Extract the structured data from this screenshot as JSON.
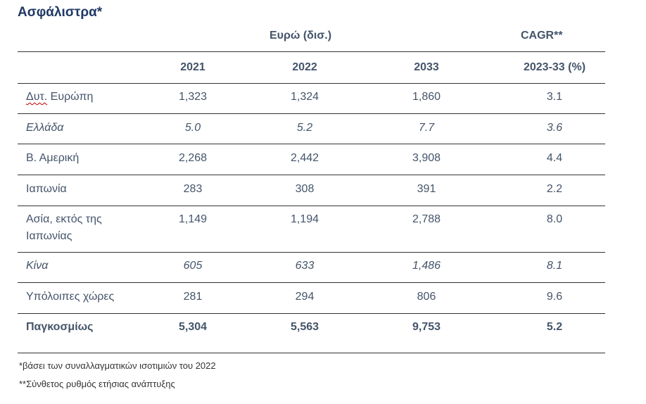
{
  "title": "Ασφάλιστρα*",
  "group_headers": {
    "currency": "Ευρώ (δισ.)",
    "cagr": "CAGR**"
  },
  "columns": [
    "",
    "2021",
    "2022",
    "2033",
    "2023-33 (%)"
  ],
  "rows": [
    {
      "region_word1": "Δυτ.",
      "region_word2": " Ευρώπη",
      "v2021": "1,323",
      "v2022": "1,324",
      "v2033": "1,860",
      "cagr": "3.1"
    },
    {
      "region": "Ελλάδα",
      "v2021": "5.0",
      "v2022": "5.2",
      "v2033": "7.7",
      "cagr": "3.6"
    },
    {
      "region": "Β. Αμερική",
      "v2021": "2,268",
      "v2022": "2,442",
      "v2033": "3,908",
      "cagr": "4.4"
    },
    {
      "region": "Ιαπωνία",
      "v2021": "283",
      "v2022": "308",
      "v2033": "391",
      "cagr": "2.2"
    },
    {
      "region_line1": "Ασία, εκτός της",
      "region_line2": "Ιαπωνίας",
      "v2021": "1,149",
      "v2022": "1,194",
      "v2033": "2,788",
      "cagr": "8.0"
    },
    {
      "region": "Κίνα",
      "v2021": "605",
      "v2022": "633",
      "v2033": "1,486",
      "cagr": "8.1"
    },
    {
      "region": "Υπόλοιπες χώρες",
      "v2021": "281",
      "v2022": "294",
      "v2033": "806",
      "cagr": "9.6"
    }
  ],
  "total": {
    "region": "Παγκοσμίως",
    "v2021": "5,304",
    "v2022": "5,563",
    "v2033": "9,753",
    "cagr": "5.2"
  },
  "notes": [
    "*βάσει των συναλλαγματικών ισοτιμιών του 2022",
    "**Σύνθετος ρυθμός ετήσιας ανάπτυξης"
  ]
}
